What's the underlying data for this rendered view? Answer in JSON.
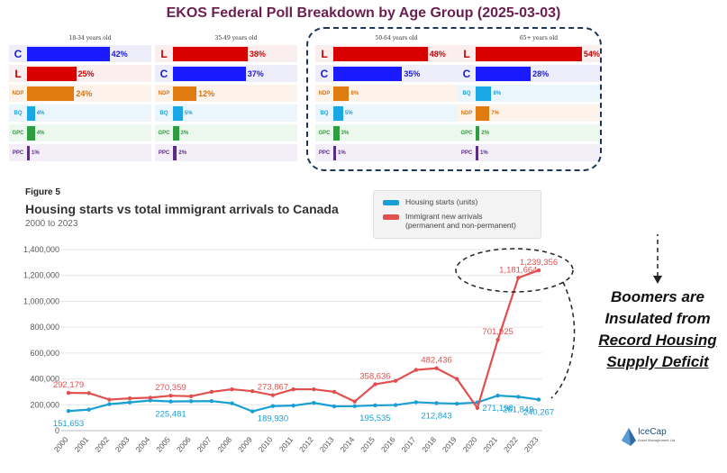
{
  "page_title": "EKOS Federal Poll  Breakdown by Age Group (2025-03-03)",
  "poll_panels": [
    {
      "title": "18-34 years old",
      "rows": [
        {
          "party": "CPC",
          "logo": "C",
          "value": 42,
          "label": "42%"
        },
        {
          "party": "LPC",
          "logo": "L",
          "value": 25,
          "label": "25%"
        },
        {
          "party": "NDP",
          "logo": "NDP",
          "value": 24,
          "label": "24%"
        },
        {
          "party": "BQ",
          "logo": "BQ",
          "value": 4,
          "label": "4%"
        },
        {
          "party": "GPC",
          "logo": "GPC",
          "value": 4,
          "label": "4%"
        },
        {
          "party": "PPC",
          "logo": "PPC",
          "value": 1,
          "label": "1%"
        }
      ]
    },
    {
      "title": "35-49 years old",
      "rows": [
        {
          "party": "LPC",
          "logo": "L",
          "value": 38,
          "label": "38%"
        },
        {
          "party": "CPC",
          "logo": "C",
          "value": 37,
          "label": "37%"
        },
        {
          "party": "NDP",
          "logo": "NDP",
          "value": 12,
          "label": "12%"
        },
        {
          "party": "BQ",
          "logo": "BQ",
          "value": 5,
          "label": "5%"
        },
        {
          "party": "GPC",
          "logo": "GPC",
          "value": 3,
          "label": "3%"
        },
        {
          "party": "PPC",
          "logo": "PPC",
          "value": 2,
          "label": "2%"
        }
      ]
    },
    {
      "title": "50-64 years old",
      "rows": [
        {
          "party": "LPC",
          "logo": "L",
          "value": 48,
          "label": "48%"
        },
        {
          "party": "CPC",
          "logo": "C",
          "value": 35,
          "label": "35%"
        },
        {
          "party": "NDP",
          "logo": "NDP",
          "value": 8,
          "label": "8%"
        },
        {
          "party": "BQ",
          "logo": "BQ",
          "value": 5,
          "label": "5%"
        },
        {
          "party": "GPC",
          "logo": "GPC",
          "value": 3,
          "label": "3%"
        },
        {
          "party": "PPC",
          "logo": "PPC",
          "value": 1,
          "label": "1%"
        }
      ]
    },
    {
      "title": "65+ years old",
      "rows": [
        {
          "party": "LPC",
          "logo": "L",
          "value": 54,
          "label": "54%"
        },
        {
          "party": "CPC",
          "logo": "C",
          "value": 28,
          "label": "28%"
        },
        {
          "party": "BQ",
          "logo": "BQ",
          "value": 8,
          "label": "8%"
        },
        {
          "party": "NDP",
          "logo": "NDP",
          "value": 7,
          "label": "7%"
        },
        {
          "party": "GPC",
          "logo": "GPC",
          "value": 2,
          "label": "2%"
        },
        {
          "party": "PPC",
          "logo": "PPC",
          "value": 1,
          "label": "1%"
        }
      ]
    }
  ],
  "party_colors": {
    "CPC": {
      "bar": "#1a1aff",
      "bg": "#eeeefb",
      "text": "#1a1ad9"
    },
    "LPC": {
      "bar": "#d90000",
      "bg": "#fbeeee",
      "text": "#cc0000"
    },
    "NDP": {
      "bar": "#e07b10",
      "bg": "#fdf3ea",
      "text": "#d9730d"
    },
    "BQ": {
      "bar": "#1aa7e6",
      "bg": "#eaf6fc",
      "text": "#1a9fd9"
    },
    "GPC": {
      "bar": "#2e9e3e",
      "bg": "#ecf7ee",
      "text": "#2e9e3e"
    },
    "PPC": {
      "bar": "#5b2c83",
      "bg": "#f3eef8",
      "text": "#5b2c83"
    }
  },
  "figure_label": "Figure 5",
  "chart_title": "Housing starts vs total immigrant arrivals to Canada",
  "chart_subtitle": "2000 to 2023",
  "legend": {
    "housing": "Housing starts (units)",
    "immigrant_line1": "Immigrant new arrivals",
    "immigrant_line2": "(permanent and non-permanent)"
  },
  "annotation": {
    "line1": "Boomers are",
    "line2": "Insulated from",
    "line3": "Record Housing",
    "line4": "Supply Deficit"
  },
  "logo": {
    "name": "IceCap",
    "sub": "Asset Management Ltd."
  },
  "chart_data": {
    "type": "line",
    "title": "Housing starts vs total immigrant arrivals to Canada",
    "subtitle": "2000 to 2023",
    "x": [
      2000,
      2001,
      2002,
      2003,
      2004,
      2005,
      2006,
      2007,
      2008,
      2009,
      2010,
      2011,
      2012,
      2013,
      2014,
      2015,
      2016,
      2017,
      2018,
      2019,
      2020,
      2021,
      2022,
      2023
    ],
    "ylim": [
      0,
      1400000
    ],
    "yticks": [
      0,
      200000,
      400000,
      600000,
      800000,
      1000000,
      1200000,
      1400000
    ],
    "ytick_labels": [
      "0",
      "200,000",
      "400,000",
      "600,000",
      "800,000",
      "1,000,000",
      "1,200,000",
      "1,400,000"
    ],
    "grid": true,
    "legend_position": "top-right",
    "series": [
      {
        "name": "Housing starts (units)",
        "color": "#1a9fd4",
        "values": [
          151653,
          162733,
          205034,
          218426,
          233431,
          225481,
          227395,
          228343,
          211056,
          149081,
          189930,
          193950,
          214827,
          187923,
          189329,
          195535,
          197916,
          219763,
          212843,
          208685,
          217880,
          271198,
          261849,
          240267
        ],
        "labels": {
          "2000": "151,653",
          "2005": "225,481",
          "2010": "189,930",
          "2015": "195,535",
          "2018": "212,843",
          "2021": "271,198",
          "2022": "261,849",
          "2023": "240,267"
        }
      },
      {
        "name": "Immigrant new arrivals (permanent and non-permanent)",
        "color": "#e0504f",
        "values": [
          292179,
          290000,
          240000,
          250000,
          255000,
          270359,
          266000,
          300000,
          320000,
          305000,
          273867,
          320000,
          320000,
          300000,
          225000,
          358636,
          385000,
          470000,
          482436,
          400000,
          175000,
          701925,
          1181664,
          1239356
        ],
        "labels": {
          "2000": "292,179",
          "2005": "270,359",
          "2010": "273,867",
          "2015": "358,636",
          "2018": "482,436",
          "2021": "701,925",
          "2022": "1,181,664",
          "2023": "1,239,356"
        }
      }
    ]
  }
}
